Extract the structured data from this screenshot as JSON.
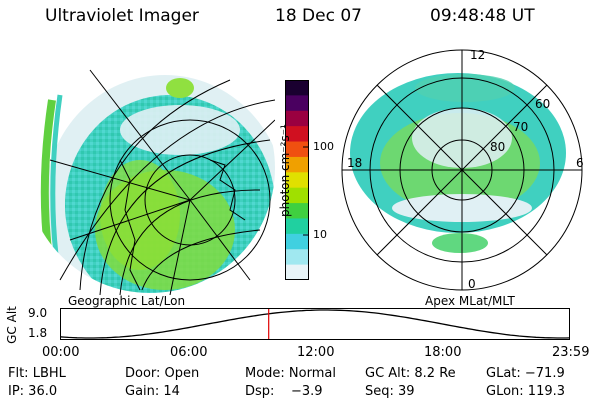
{
  "header": {
    "instrument": "Ultraviolet Imager",
    "date": "18 Dec 07",
    "time": "09:48:48 UT"
  },
  "colorbar": {
    "unit_label": "photon cm⁻²s⁻¹",
    "ticks": [
      "100",
      "10"
    ],
    "colors": [
      "#1a0030",
      "#4a0060",
      "#9a0040",
      "#d01020",
      "#f05010",
      "#f0a000",
      "#e0e000",
      "#a0e000",
      "#40d040",
      "#20d0a0",
      "#40d0e0",
      "#a0e8f0",
      "#e8f4f8"
    ]
  },
  "geo_panel": {
    "caption": "Geographic Lat/Lon"
  },
  "apex_panel": {
    "caption": "Apex MLat/MLT",
    "mlt_labels": {
      "top": "12",
      "left": "18",
      "right": "6",
      "bottom": "0"
    },
    "lat_labels": [
      "60",
      "70",
      "80"
    ]
  },
  "altitude_plot": {
    "ylabel": "GC Alt",
    "yticks": [
      "9.0",
      "1.8"
    ],
    "xticks": [
      "00:00",
      "06:00",
      "12:00",
      "18:00",
      "23:59"
    ],
    "current_time_marker": "09:48:48",
    "marker_color": "#e00000"
  },
  "info": {
    "filter": "Flt: LBHL",
    "door": "Door: Open",
    "mode": "Mode: Normal",
    "gc_alt": "GC Alt: 8.2 Re",
    "glat": "GLat: −71.9",
    "ip": "IP: 36.0",
    "gain": "Gain: 14",
    "dsp": "Dsp:    −3.9",
    "seq": "Seq: 39",
    "glon": "GLon: 119.3"
  }
}
